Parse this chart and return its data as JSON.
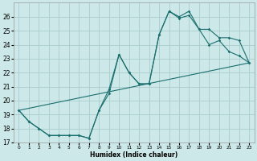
{
  "xlabel": "Humidex (Indice chaleur)",
  "bg_color": "#cce8e8",
  "grid_color": "#aacccc",
  "line_color": "#1a6e6e",
  "line1_x": [
    0,
    1,
    2,
    3,
    4,
    5,
    6,
    7,
    8,
    9,
    10,
    11,
    12,
    13,
    14,
    15,
    16,
    17,
    18,
    19,
    20,
    21,
    22,
    23
  ],
  "line1_y": [
    19.3,
    18.5,
    18.0,
    17.5,
    17.5,
    17.5,
    17.5,
    17.3,
    19.3,
    20.8,
    23.3,
    22.0,
    21.2,
    21.2,
    24.7,
    26.4,
    26.0,
    26.4,
    25.1,
    25.1,
    24.5,
    24.5,
    24.3,
    22.7
  ],
  "line2_x": [
    0,
    1,
    2,
    3,
    4,
    5,
    6,
    7,
    8,
    9,
    10,
    11,
    12,
    13,
    14,
    15,
    16,
    17,
    18,
    19,
    20,
    21,
    22,
    23
  ],
  "line2_y": [
    19.3,
    18.5,
    18.0,
    17.5,
    17.5,
    17.5,
    17.5,
    17.3,
    19.3,
    20.5,
    23.3,
    22.0,
    21.2,
    21.2,
    24.7,
    26.4,
    25.9,
    26.1,
    25.1,
    24.0,
    24.3,
    23.5,
    23.2,
    22.7
  ],
  "line3_x": [
    0,
    23
  ],
  "line3_y": [
    19.3,
    22.7
  ],
  "ylim": [
    17,
    27
  ],
  "xlim": [
    -0.5,
    23.5
  ],
  "yticks": [
    17,
    18,
    19,
    20,
    21,
    22,
    23,
    24,
    25,
    26
  ],
  "xticks": [
    0,
    1,
    2,
    3,
    4,
    5,
    6,
    7,
    8,
    9,
    10,
    11,
    12,
    13,
    14,
    15,
    16,
    17,
    18,
    19,
    20,
    21,
    22,
    23
  ]
}
